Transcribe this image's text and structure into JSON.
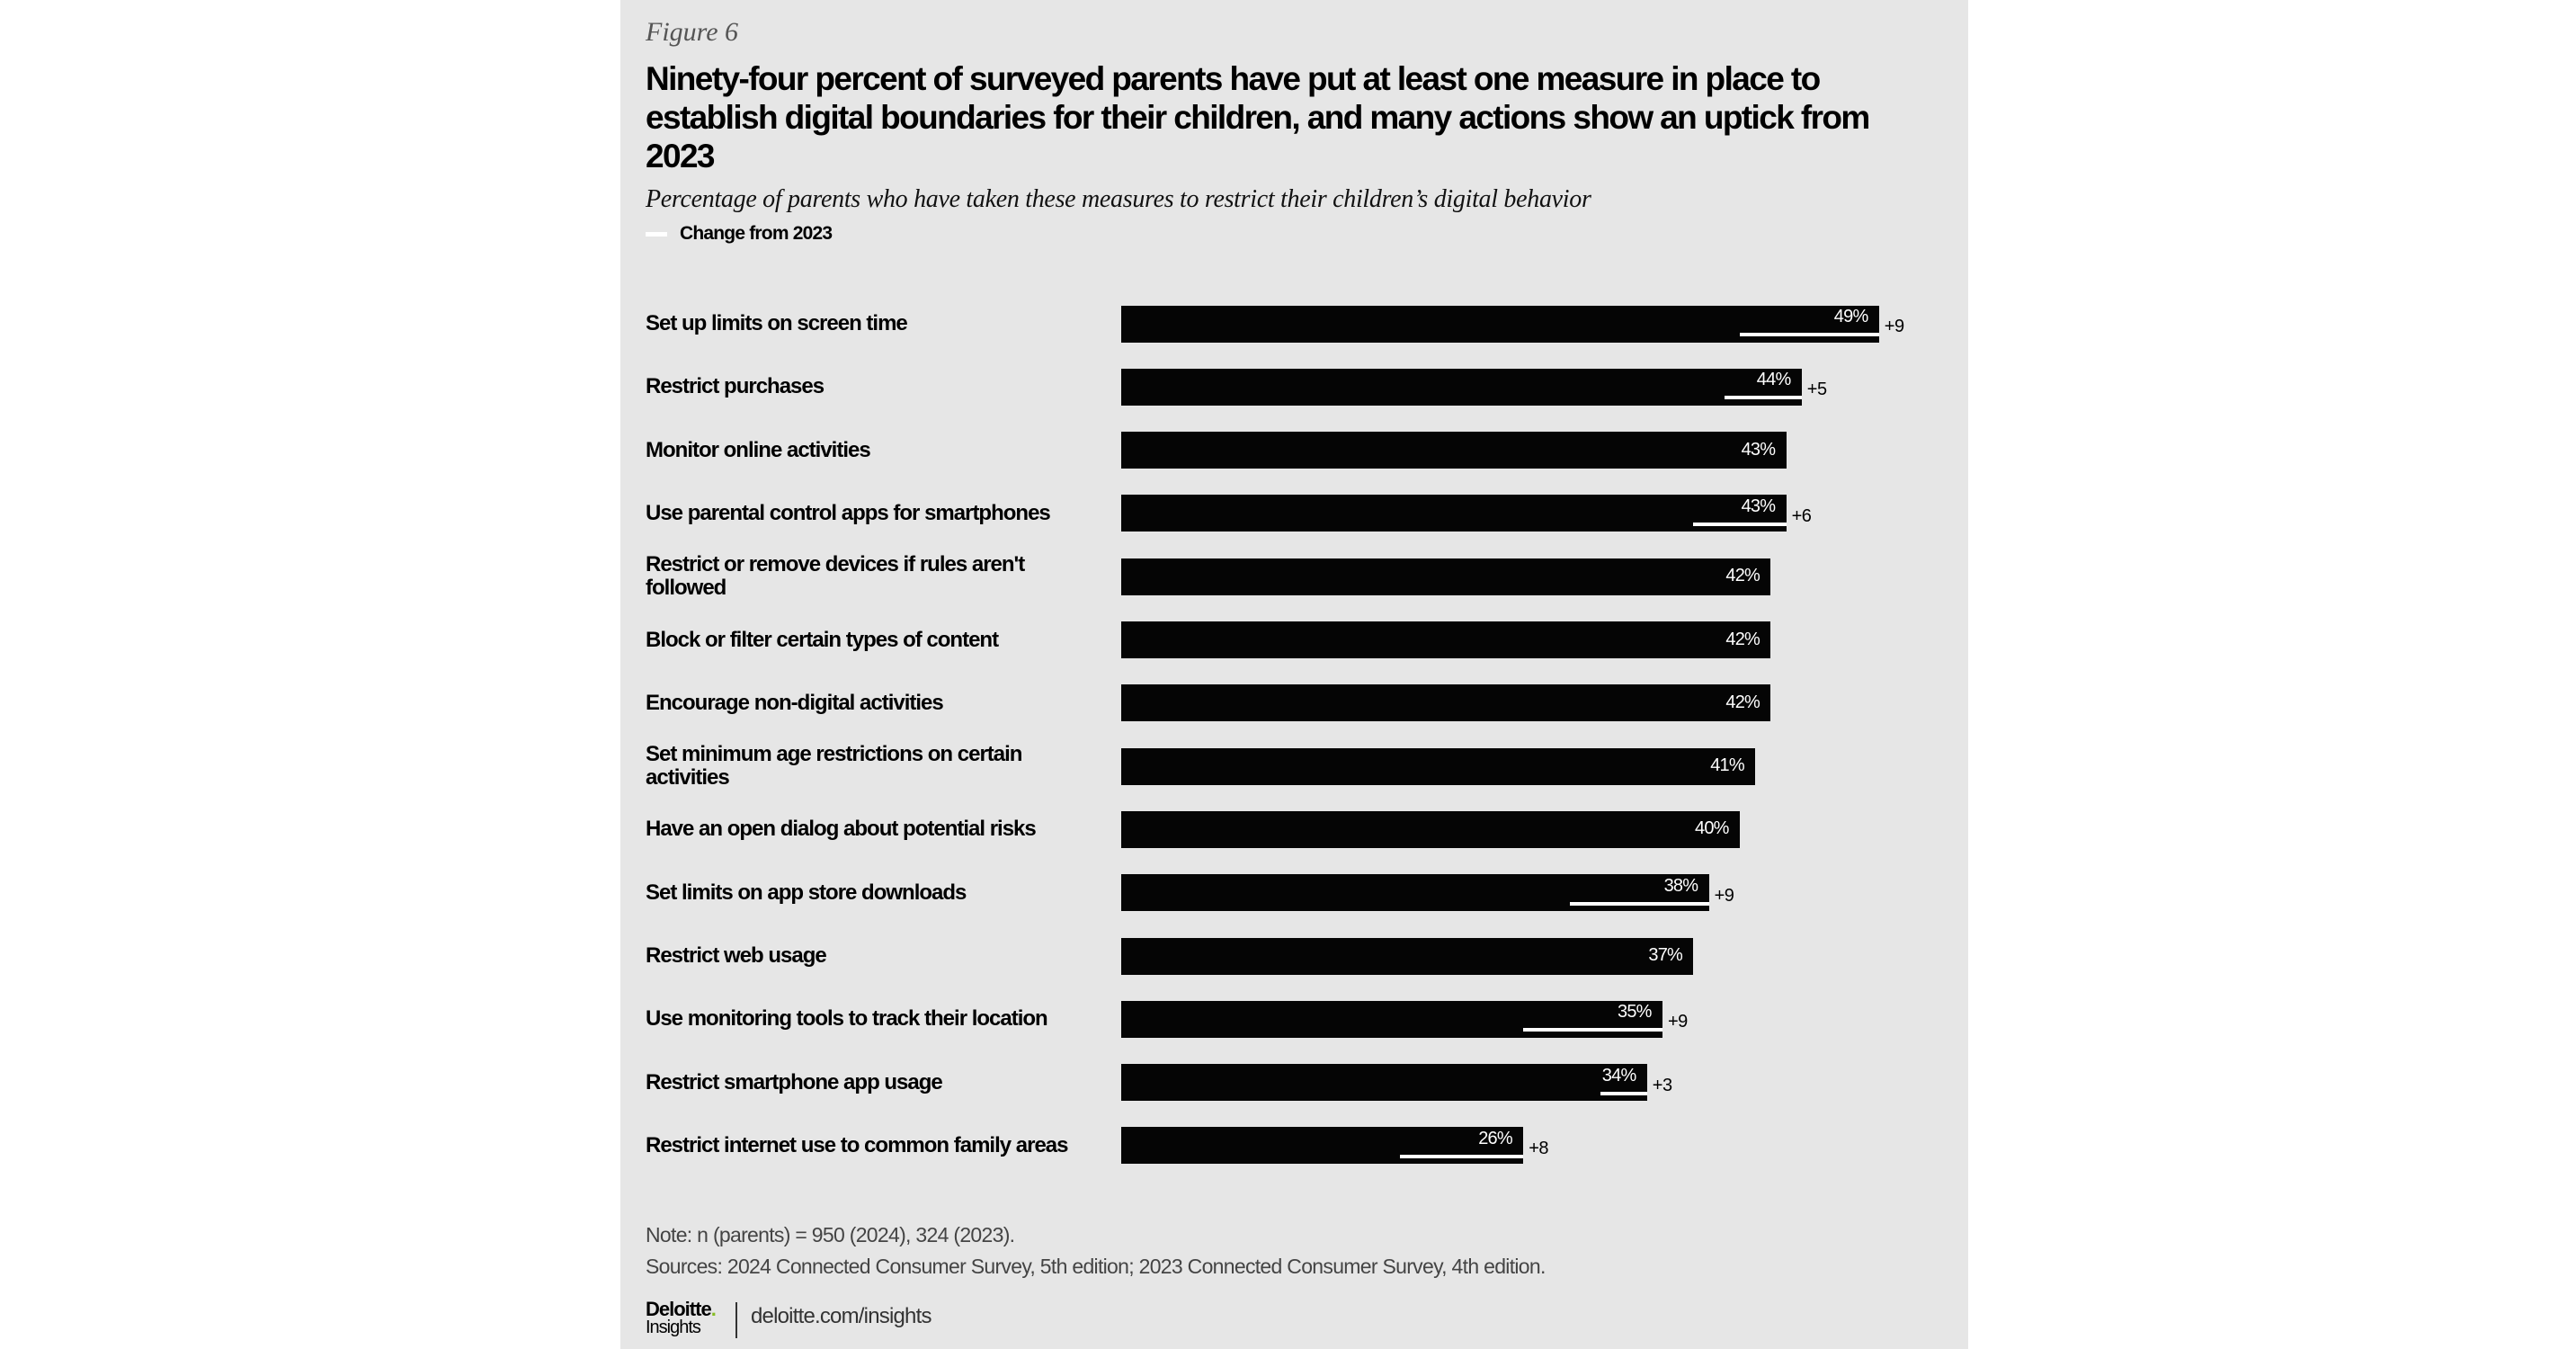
{
  "figure_label": "Figure 6",
  "chart_data": {
    "type": "bar",
    "orientation": "horizontal",
    "title": "Ninety-four percent of surveyed parents have put at least one measure in place to establish digital boundaries for their children, and many actions show an uptick from 2023",
    "subtitle": "Percentage of parents who have taken these measures to restrict their children’s digital behavior",
    "legend": [
      {
        "name": "Change from 2023",
        "color": "#ffffff"
      }
    ],
    "legend_position": "top-left",
    "grid": false,
    "xlim": [
      0,
      50
    ],
    "bar_color": "#050505",
    "categories": [
      "Set up limits on screen time",
      "Restrict purchases",
      "Monitor online activities",
      "Use parental control apps for smartphones",
      "Restrict or remove devices if rules aren't followed",
      "Block or filter certain types of content",
      "Encourage non-digital activities",
      "Set minimum age restrictions on certain activities",
      "Have an open dialog about potential risks",
      "Set limits on app store downloads",
      "Restrict web usage",
      "Use monitoring tools to track their location",
      "Restrict smartphone app usage",
      "Restrict internet use to common family areas"
    ],
    "values": [
      49,
      44,
      43,
      43,
      42,
      42,
      42,
      41,
      40,
      38,
      37,
      35,
      34,
      26
    ],
    "value_labels": [
      "49%",
      "44%",
      "43%",
      "43%",
      "42%",
      "42%",
      "42%",
      "41%",
      "40%",
      "38%",
      "37%",
      "35%",
      "34%",
      "26%"
    ],
    "change_from_2023": [
      9,
      5,
      null,
      6,
      null,
      null,
      null,
      null,
      null,
      9,
      null,
      9,
      3,
      8
    ],
    "change_labels": [
      "+9",
      "+5",
      "",
      "+6",
      "",
      "",
      "",
      "",
      "",
      "+9",
      "",
      "+9",
      "+3",
      "+8"
    ]
  },
  "footer": {
    "note": "Note: n (parents) = 950 (2024), 324 (2023).",
    "sources": "Sources: 2024 Connected Consumer Survey, 5th edition; 2023 Connected Consumer Survey, 4th edition.",
    "logo_brand": "Deloitte.",
    "logo_sub": "Insights",
    "url": "deloitte.com/insights"
  }
}
